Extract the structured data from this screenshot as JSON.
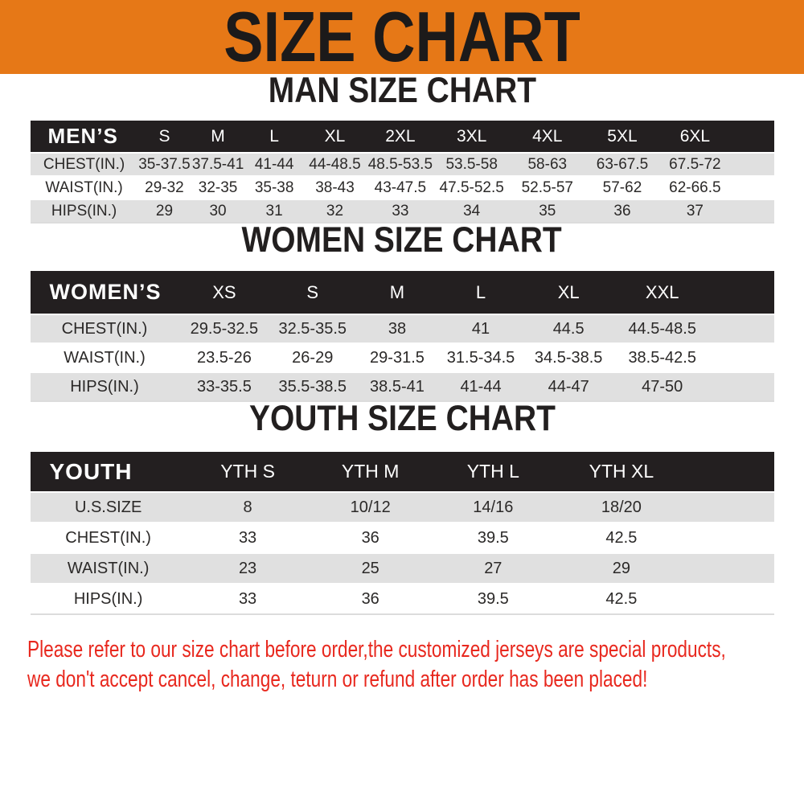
{
  "colors": {
    "banner_bg": "#e67817",
    "table_header_bg": "#231f20",
    "row_stripe": "#e0e0e0",
    "footer_text": "#e8281e",
    "title_text": "#1c1a1a"
  },
  "banner": {
    "title": "SIZE CHART"
  },
  "sections": [
    {
      "heading": "MAN SIZE CHART",
      "table": {
        "header": [
          "MEN’S",
          "S",
          "M",
          "L",
          "XL",
          "2XL",
          "3XL",
          "4XL",
          "5XL",
          "6XL"
        ],
        "rows": [
          [
            "CHEST(IN.)",
            "35-37.5",
            "37.5-41",
            "41-44",
            "44-48.5",
            "48.5-53.5",
            "53.5-58",
            "58-63",
            "63-67.5",
            "67.5-72"
          ],
          [
            "WAIST(IN.)",
            "29-32",
            "32-35",
            "35-38",
            "38-43",
            "43-47.5",
            "47.5-52.5",
            "52.5-57",
            "57-62",
            "62-66.5"
          ],
          [
            "HIPS(IN.)",
            "29",
            "30",
            "31",
            "32",
            "33",
            "34",
            "35",
            "36",
            "37"
          ]
        ]
      }
    },
    {
      "heading": "WOMEN SIZE CHART",
      "table": {
        "header": [
          "WOMEN’S",
          "XS",
          "S",
          "M",
          "L",
          "XL",
          "XXL"
        ],
        "rows": [
          [
            "CHEST(IN.)",
            "29.5-32.5",
            "32.5-35.5",
            "38",
            "41",
            "44.5",
            "44.5-48.5"
          ],
          [
            "WAIST(IN.)",
            "23.5-26",
            "26-29",
            "29-31.5",
            "31.5-34.5",
            "34.5-38.5",
            "38.5-42.5"
          ],
          [
            "HIPS(IN.)",
            "33-35.5",
            "35.5-38.5",
            "38.5-41",
            "41-44",
            "44-47",
            "47-50"
          ]
        ]
      }
    },
    {
      "heading": "YOUTH SIZE CHART",
      "table": {
        "header": [
          "YOUTH",
          "YTH S",
          "YTH M",
          "YTH L",
          "YTH XL"
        ],
        "rows": [
          [
            "U.S.SIZE",
            "8",
            "10/12",
            "14/16",
            "18/20"
          ],
          [
            "CHEST(IN.)",
            "33",
            "36",
            "39.5",
            "42.5"
          ],
          [
            "WAIST(IN.)",
            "23",
            "25",
            "27",
            "29"
          ],
          [
            "HIPS(IN.)",
            "33",
            "36",
            "39.5",
            "42.5"
          ]
        ]
      }
    }
  ],
  "footer": {
    "lines": [
      "Please refer to our size chart before order,the customized jerseys are special products,",
      "we don't accept cancel, change, teturn or refund after order has been placed!"
    ]
  }
}
